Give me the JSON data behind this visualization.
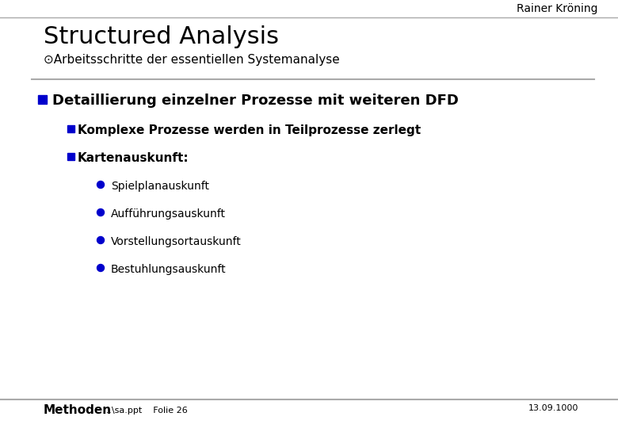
{
  "background_color": "#ffffff",
  "header_name": "Rainer Kröning",
  "title": "Structured Analysis",
  "subtitle": "⊙Arbeitsschritte der essentiellen Systemanalyse",
  "footer_left_bold": "Methoden",
  "footer_left_small": "...\\sa.ppt    Folie 26",
  "footer_right": "13.09.1000",
  "bullet_color": "#0000cc",
  "bullet1_text": "Detaillierung einzelner Prozesse mit weiteren DFD",
  "bullet2_text": "Komplexe Prozesse werden in Teilprozesse zerlegt",
  "bullet3_text": "Kartenauskunft:",
  "subbullets": [
    "Spielplanauskunft",
    "Aufführungsauskunft",
    "Vorstellungsortauskunft",
    "Bestuhlungsauskunft"
  ],
  "line_color": "#aaaaaa",
  "text_color": "#000000",
  "title_fontsize": 22,
  "subtitle_fontsize": 11,
  "bullet1_fontsize": 13,
  "bullet2_fontsize": 11,
  "bullet3_fontsize": 11,
  "subbullet_fontsize": 10,
  "header_fontsize": 10,
  "footer_fontsize": 9
}
